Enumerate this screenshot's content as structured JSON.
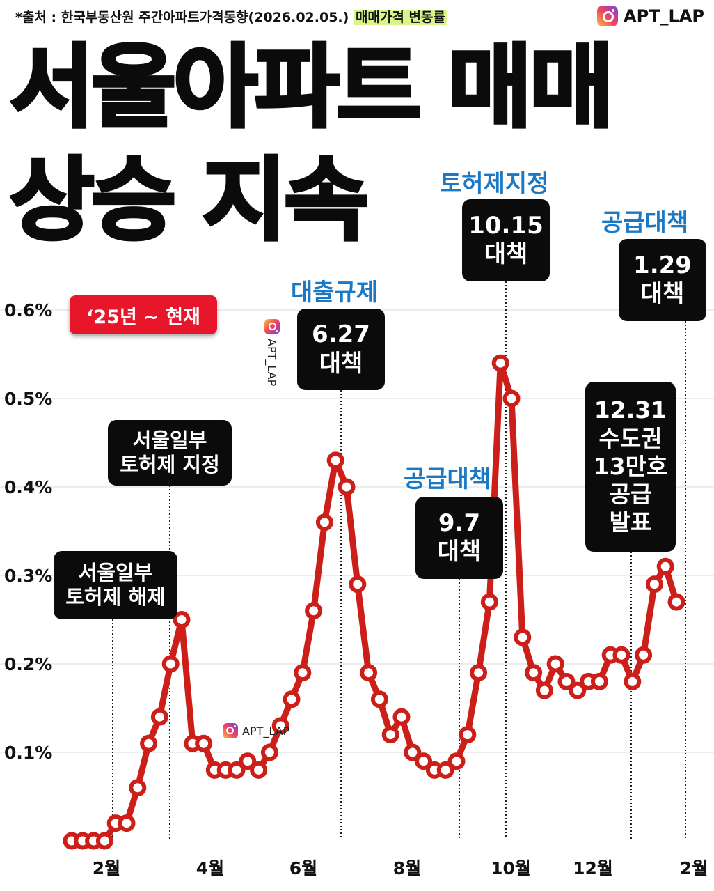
{
  "header": {
    "source_prefix": "*출처 : 한국부동산원 주간아파트가격동향(2026.02.05.)",
    "source_highlight": "매매가격 변동률",
    "instagram_handle": "APT_LAP"
  },
  "title": {
    "line1": "서울아파트 매매",
    "line2": "상승 지속"
  },
  "period_badge": "‘25년 ~ 현재",
  "watermark": "APT_LAP",
  "annotations": [
    {
      "heading": "",
      "box": "서울일부\n토허제 해제"
    },
    {
      "heading": "",
      "box": "서울일부\n토허제 지정"
    },
    {
      "heading": "대출규제",
      "box": "6.27\n대책"
    },
    {
      "heading": "공급대책",
      "box": "9.7\n대책"
    },
    {
      "heading": "토허제지정",
      "box": "10.15\n대책"
    },
    {
      "heading": "",
      "box": "12.31\n수도권\n13만호\n공급\n발표"
    },
    {
      "heading": "공급대책",
      "box": "1.29\n대책"
    }
  ],
  "colors": {
    "line": "#cc1f1a",
    "heading": "#1a78c4",
    "badge": "#e8162a",
    "highlight": "#d9f58a"
  },
  "chart_data": {
    "type": "line",
    "title": "서울아파트 매매 상승 지속",
    "xlabel": "",
    "ylabel": "",
    "x_ticks": [
      "2월",
      "4월",
      "6월",
      "8월",
      "10월",
      "12월",
      "2월"
    ],
    "y_ticks": [
      "0.1%",
      "0.2%",
      "0.3%",
      "0.4%",
      "0.5%",
      "0.6%"
    ],
    "ylim": [
      0.0,
      0.6
    ],
    "grid": true,
    "series": [
      {
        "name": "",
        "values": [
          0.0,
          0.0,
          0.0,
          0.0,
          0.02,
          0.02,
          0.06,
          0.11,
          0.14,
          0.2,
          0.25,
          0.11,
          0.11,
          0.08,
          0.08,
          0.08,
          0.09,
          0.08,
          0.1,
          0.13,
          0.16,
          0.19,
          0.26,
          0.36,
          0.43,
          0.4,
          0.29,
          0.19,
          0.16,
          0.12,
          0.14,
          0.1,
          0.09,
          0.08,
          0.08,
          0.09,
          0.12,
          0.19,
          0.27,
          0.54,
          0.5,
          0.23,
          0.19,
          0.17,
          0.2,
          0.18,
          0.17,
          0.18,
          0.18,
          0.21,
          0.21,
          0.18,
          0.21,
          0.29,
          0.31,
          0.27
        ]
      }
    ]
  }
}
